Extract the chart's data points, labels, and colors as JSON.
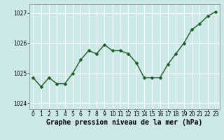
{
  "x": [
    0,
    1,
    2,
    3,
    4,
    5,
    6,
    7,
    8,
    9,
    10,
    11,
    12,
    13,
    14,
    15,
    16,
    17,
    18,
    19,
    20,
    21,
    22,
    23
  ],
  "y": [
    1024.85,
    1024.55,
    1024.85,
    1024.65,
    1024.65,
    1025.0,
    1025.45,
    1025.75,
    1025.65,
    1025.95,
    1025.75,
    1025.75,
    1025.65,
    1025.35,
    1024.85,
    1024.85,
    1024.85,
    1025.3,
    1025.65,
    1026.0,
    1026.45,
    1026.65,
    1026.9,
    1027.05
  ],
  "line_color": "#1a5c1a",
  "marker_color": "#1a5c1a",
  "bg_color": "#cce8e8",
  "grid_color": "#ffffff",
  "xlabel": "Graphe pression niveau de la mer (hPa)",
  "xlabel_fontsize": 7,
  "ylim": [
    1023.8,
    1027.3
  ],
  "yticks": [
    1024,
    1025,
    1026,
    1027
  ],
  "xticks": [
    0,
    1,
    2,
    3,
    4,
    5,
    6,
    7,
    8,
    9,
    10,
    11,
    12,
    13,
    14,
    15,
    16,
    17,
    18,
    19,
    20,
    21,
    22,
    23
  ],
  "tick_fontsize": 5.5,
  "marker_size": 2.5,
  "line_width": 1.0
}
